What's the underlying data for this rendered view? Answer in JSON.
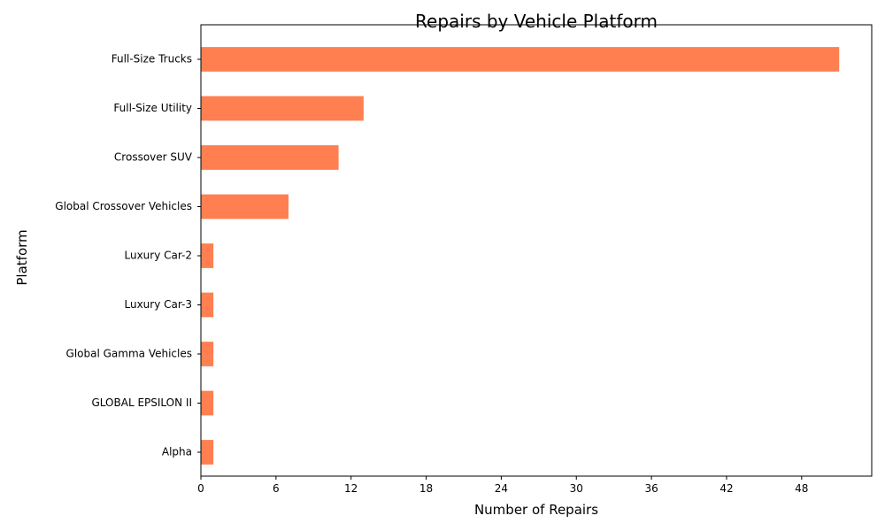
{
  "chart_data": {
    "type": "bar",
    "orientation": "horizontal",
    "title": "Repairs by Vehicle Platform",
    "xlabel": "Number of Repairs",
    "ylabel": "Platform",
    "categories": [
      "Full-Size Trucks",
      "Full-Size Utility",
      "Crossover SUV",
      "Global Crossover Vehicles",
      "Luxury Car-2",
      "Luxury Car-3",
      "Global Gamma Vehicles",
      "GLOBAL EPSILON II",
      "Alpha"
    ],
    "values": [
      51,
      13,
      11,
      7,
      1,
      1,
      1,
      1,
      1
    ],
    "xlim": [
      0,
      53.6
    ],
    "xticks": [
      "0",
      "6",
      "12",
      "18",
      "24",
      "30",
      "36",
      "42",
      "48"
    ],
    "bar_color": "#ff7f50",
    "grid": false,
    "legend": false
  }
}
